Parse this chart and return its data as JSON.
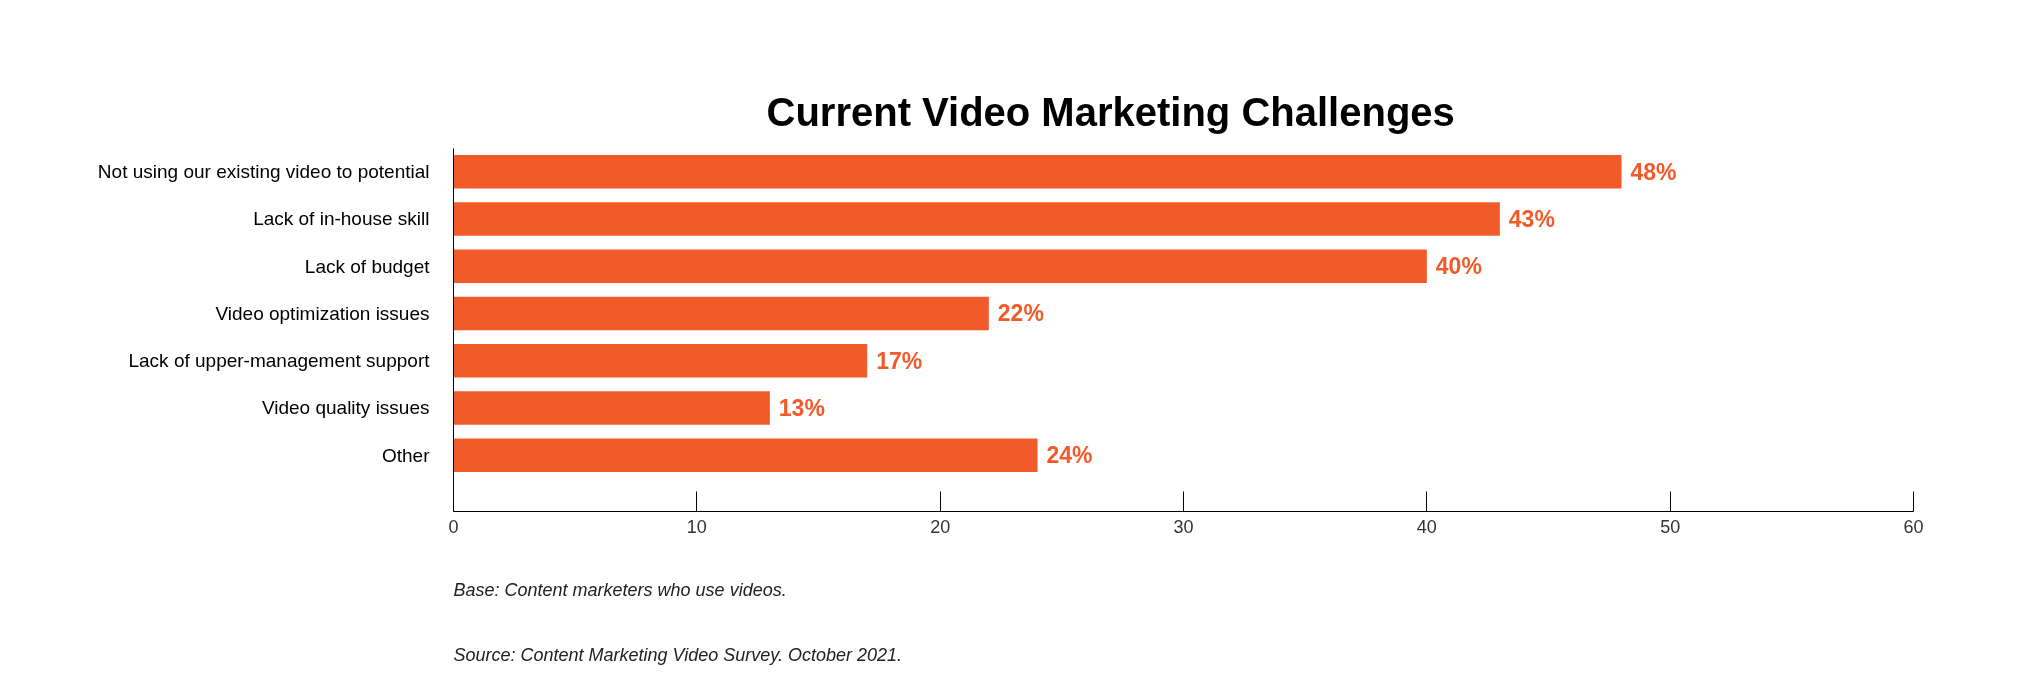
{
  "chart_data": {
    "type": "bar",
    "orientation": "horizontal",
    "title": "Current Video Marketing Challenges",
    "categories": [
      "Not using our existing video to potential",
      "Lack of in-house skill",
      "Lack of budget",
      "Video optimization issues",
      "Lack of upper-management support",
      "Video quality issues",
      "Other"
    ],
    "values": [
      48,
      43,
      40,
      22,
      17,
      13,
      24
    ],
    "color": "#f15a29",
    "value_labels": [
      "48%",
      "43%",
      "40%",
      "22%",
      "17%",
      "13%",
      "24%"
    ],
    "xlim": [
      0,
      60
    ],
    "xticks": [
      0,
      10,
      20,
      30,
      40,
      50,
      60
    ],
    "annotations": [
      "Base: Content marketers who use videos.",
      "Source: Content Marketing Video Survey. October 2021."
    ]
  }
}
